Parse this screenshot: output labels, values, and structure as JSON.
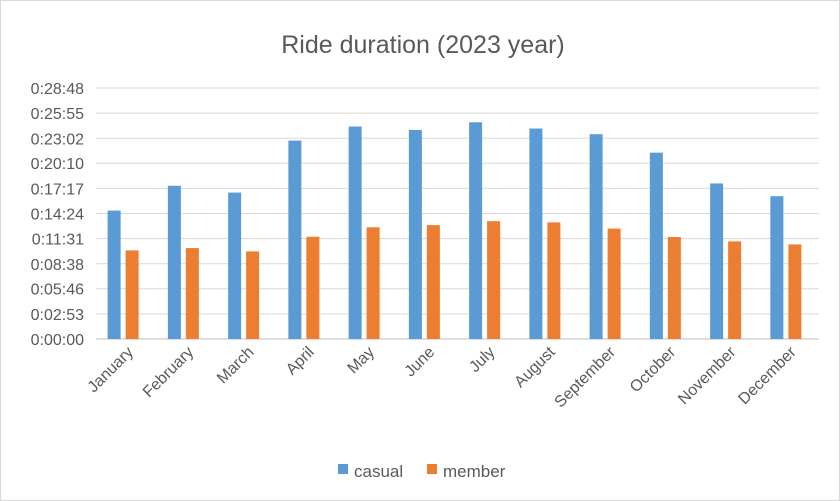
{
  "chart_data": {
    "type": "bar",
    "title": "Ride duration (2023 year)",
    "xlabel": "",
    "ylabel": "",
    "categories": [
      "January",
      "February",
      "March",
      "April",
      "May",
      "June",
      "July",
      "August",
      "September",
      "October",
      "November",
      "December"
    ],
    "series": [
      {
        "name": "casual",
        "color": "#5B9BD5",
        "values": [
          "0:14:44",
          "0:17:35",
          "0:16:48",
          "0:22:46",
          "0:24:23",
          "0:23:59",
          "0:24:52",
          "0:24:09",
          "0:23:30",
          "0:21:23",
          "0:17:51",
          "0:16:23"
        ]
      },
      {
        "name": "member",
        "color": "#ED7D31",
        "values": [
          "0:10:10",
          "0:10:26",
          "0:10:03",
          "0:11:44",
          "0:12:49",
          "0:13:04",
          "0:13:31",
          "0:13:23",
          "0:12:40",
          "0:11:42",
          "0:11:12",
          "0:10:51"
        ]
      }
    ],
    "y_ticks": [
      "0:00:00",
      "0:02:53",
      "0:05:46",
      "0:08:38",
      "0:11:31",
      "0:14:24",
      "0:17:17",
      "0:20:10",
      "0:23:02",
      "0:25:55",
      "0:28:48"
    ],
    "ylim": [
      "0:00:00",
      "0:28:48"
    ],
    "grid": true,
    "legend_position": "bottom"
  }
}
